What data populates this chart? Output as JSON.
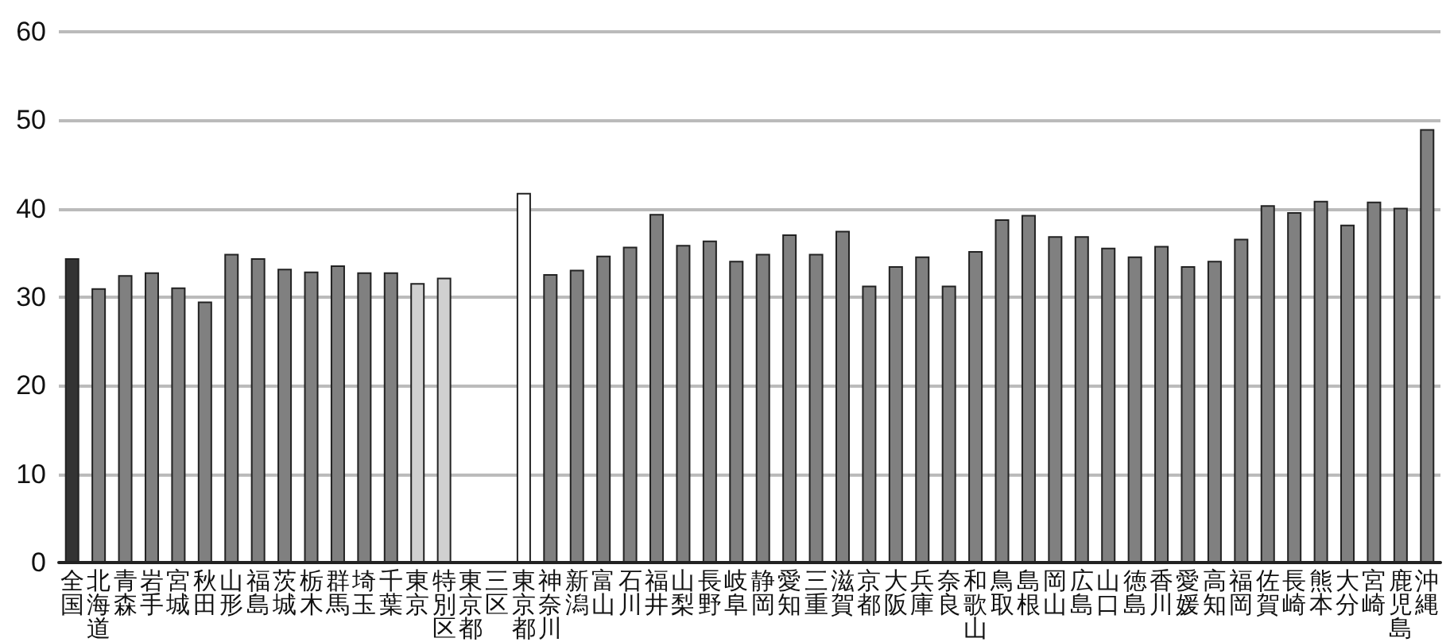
{
  "chart_data": {
    "type": "bar",
    "categories": [
      "全国",
      "北海道",
      "青森",
      "岩手",
      "宮城",
      "秋田",
      "山形",
      "福島",
      "茨城",
      "栃木",
      "群馬",
      "埼玉",
      "千葉",
      "東京",
      "特別区",
      "東京都",
      "三区",
      "東京都",
      "神奈川",
      "新潟",
      "富山",
      "石川",
      "福井",
      "山梨",
      "長野",
      "岐阜",
      "静岡",
      "愛知",
      "三重",
      "滋賀",
      "京都",
      "大阪",
      "兵庫",
      "奈良",
      "和歌山",
      "鳥取",
      "島根",
      "岡山",
      "広島",
      "山口",
      "徳島",
      "香川",
      "愛媛",
      "高知",
      "福岡",
      "佐賀",
      "長崎",
      "熊本",
      "大分",
      "宮崎",
      "鹿児島",
      "沖縄"
    ],
    "values": [
      34.4,
      31.0,
      32.5,
      32.8,
      31.1,
      29.5,
      34.9,
      34.4,
      33.2,
      32.9,
      33.6,
      32.8,
      32.8,
      31.6,
      32.2,
      null,
      null,
      41.8,
      32.6,
      33.1,
      34.7,
      35.7,
      39.4,
      35.9,
      36.4,
      34.1,
      34.9,
      37.1,
      34.9,
      37.5,
      31.3,
      33.5,
      34.6,
      31.3,
      35.2,
      38.8,
      39.3,
      36.9,
      36.9,
      35.6,
      34.6,
      35.8,
      33.5,
      34.1,
      36.6,
      40.4,
      39.6,
      40.9,
      38.2,
      40.8,
      40.1,
      49.0
    ],
    "colors": [
      "#333333",
      "#808080",
      "#808080",
      "#808080",
      "#808080",
      "#808080",
      "#808080",
      "#808080",
      "#808080",
      "#808080",
      "#808080",
      "#808080",
      "#808080",
      "#d0d0d0",
      "#d0d0d0",
      "#808080",
      "#808080",
      "#ffffff",
      "#808080",
      "#808080",
      "#808080",
      "#808080",
      "#808080",
      "#808080",
      "#808080",
      "#808080",
      "#808080",
      "#808080",
      "#808080",
      "#808080",
      "#808080",
      "#808080",
      "#808080",
      "#808080",
      "#808080",
      "#808080",
      "#808080",
      "#808080",
      "#808080",
      "#808080",
      "#808080",
      "#808080",
      "#808080",
      "#808080",
      "#808080",
      "#808080",
      "#808080",
      "#808080",
      "#808080",
      "#808080",
      "#808080",
      "#808080"
    ],
    "ylim": [
      0,
      60
    ],
    "yticks": [
      0,
      10,
      20,
      30,
      40,
      50,
      60
    ],
    "grid": "y"
  }
}
